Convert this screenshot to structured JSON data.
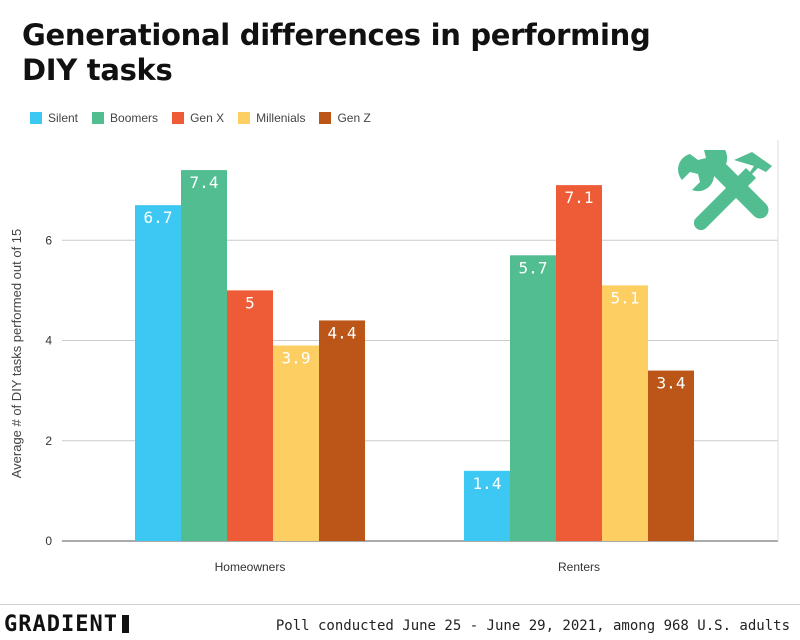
{
  "title": "Generational differences in performing DIY tasks",
  "footer": {
    "brand": "GRADIENT",
    "note": "Poll conducted June 25 - June 29, 2021, among 968 U.S. adults"
  },
  "icon": {
    "name": "tools-icon",
    "color": "#52BD91"
  },
  "chart_data": {
    "type": "bar",
    "categories": [
      "Homeowners",
      "Renters"
    ],
    "series": [
      {
        "name": "Silent",
        "color": "#3CC8F2",
        "values": [
          6.7,
          1.4
        ]
      },
      {
        "name": "Boomers",
        "color": "#52BD91",
        "values": [
          7.4,
          5.7
        ]
      },
      {
        "name": "Gen X",
        "color": "#EE5B37",
        "values": [
          5,
          7.1
        ]
      },
      {
        "name": "Millenials",
        "color": "#FDCF63",
        "values": [
          3.9,
          5.1
        ]
      },
      {
        "name": "Gen Z",
        "color": "#BC5518",
        "values": [
          4.4,
          3.4
        ]
      }
    ],
    "ylabel": "Average # of DIY tasks performed out of 15",
    "yticks": [
      0,
      2,
      4,
      6
    ],
    "ylim": [
      0,
      8
    ],
    "grid": true,
    "legend": "top-left"
  }
}
